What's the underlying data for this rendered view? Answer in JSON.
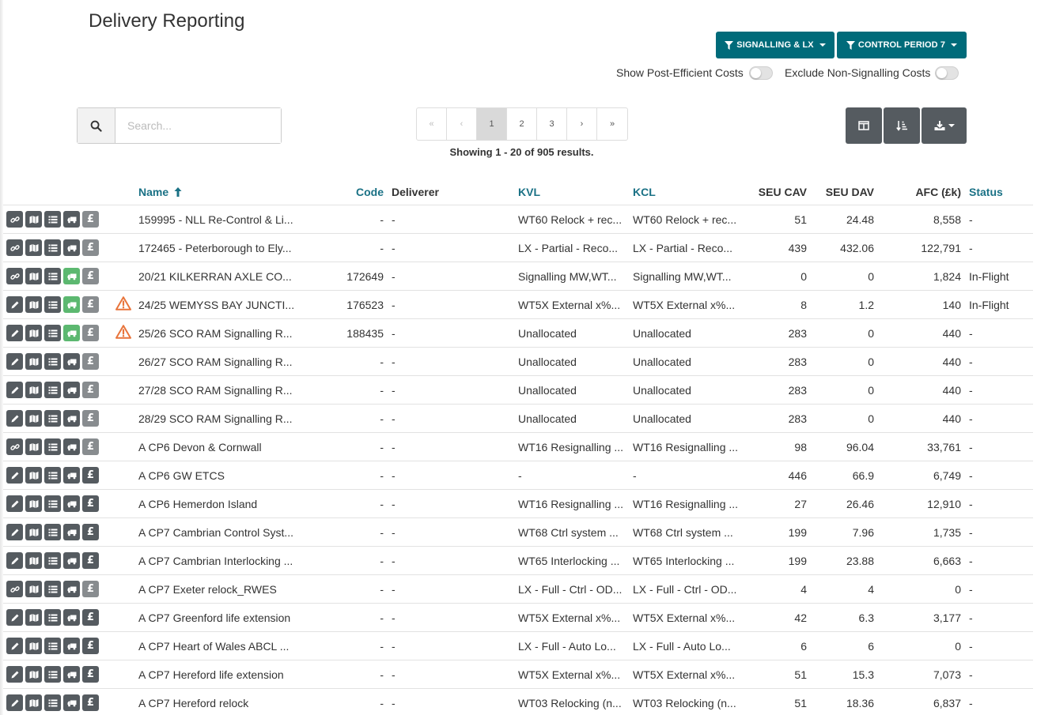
{
  "header": {
    "title": "Delivery Reporting"
  },
  "filters": [
    {
      "label": "SIGNALLING & LX"
    },
    {
      "label": "CONTROL PERIOD 7"
    }
  ],
  "toggles": {
    "post_efficient": {
      "label": "Show Post-Efficient Costs",
      "on": false
    },
    "exclude_non_signalling": {
      "label": "Exclude Non-Signalling Costs",
      "on": false
    }
  },
  "search": {
    "placeholder": "Search...",
    "value": ""
  },
  "pagination": {
    "first": "«",
    "prev": "‹",
    "pages": [
      "1",
      "2",
      "3"
    ],
    "current": "1",
    "next": "›",
    "last": "»",
    "summary": "Showing 1 - 20 of 905 results."
  },
  "toolbar": {
    "columns_icon": "columns-icon",
    "sort_icon": "sort-icon",
    "download_icon": "download-icon"
  },
  "table": {
    "columns": {
      "name": "Name",
      "code": "Code",
      "deliverer": "Deliverer",
      "kvl": "KVL",
      "kcl": "KCL",
      "seu_cav": "SEU CAV",
      "seu_dav": "SEU DAV",
      "afc": "AFC (£k)",
      "status": "Status"
    },
    "rows": [
      {
        "lead": "link",
        "truck": "dark",
        "pound": "grey",
        "warn": false,
        "name": "159995 - NLL Re-Control & Li...",
        "code": "-",
        "deliverer": "-",
        "kvl": "WT60 Relock + rec...",
        "kcl": "WT60 Relock + rec...",
        "seu_cav": "51",
        "seu_dav": "24.48",
        "afc": "8,558",
        "status": "-"
      },
      {
        "lead": "link",
        "truck": "dark",
        "pound": "grey",
        "warn": false,
        "name": "172465 - Peterborough to Ely...",
        "code": "-",
        "deliverer": "-",
        "kvl": "LX - Partial - Reco...",
        "kcl": "LX - Partial - Reco...",
        "seu_cav": "439",
        "seu_dav": "432.06",
        "afc": "122,791",
        "status": "-"
      },
      {
        "lead": "link",
        "truck": "green",
        "pound": "grey",
        "warn": false,
        "name": "20/21 KILKERRAN AXLE CO...",
        "code": "172649",
        "deliverer": "-",
        "kvl": "Signalling MW,WT...",
        "kcl": "Signalling MW,WT...",
        "seu_cav": "0",
        "seu_dav": "0",
        "afc": "1,824",
        "status": "In-Flight"
      },
      {
        "lead": "pencil",
        "truck": "green",
        "pound": "grey",
        "warn": true,
        "name": "24/25 WEMYSS BAY JUNCTI...",
        "code": "176523",
        "deliverer": "-",
        "kvl": "WT5X External x%...",
        "kcl": "WT5X External x%...",
        "seu_cav": "8",
        "seu_dav": "1.2",
        "afc": "140",
        "status": "In-Flight"
      },
      {
        "lead": "pencil",
        "truck": "green",
        "pound": "grey",
        "warn": true,
        "name": "25/26 SCO RAM Signalling R...",
        "code": "188435",
        "deliverer": "-",
        "kvl": "Unallocated",
        "kcl": "Unallocated",
        "seu_cav": "283",
        "seu_dav": "0",
        "afc": "440",
        "status": "-"
      },
      {
        "lead": "pencil",
        "truck": "dark",
        "pound": "grey",
        "warn": false,
        "name": "26/27 SCO RAM Signalling R...",
        "code": "-",
        "deliverer": "-",
        "kvl": "Unallocated",
        "kcl": "Unallocated",
        "seu_cav": "283",
        "seu_dav": "0",
        "afc": "440",
        "status": "-"
      },
      {
        "lead": "pencil",
        "truck": "dark",
        "pound": "grey",
        "warn": false,
        "name": "27/28 SCO RAM Signalling R...",
        "code": "-",
        "deliverer": "-",
        "kvl": "Unallocated",
        "kcl": "Unallocated",
        "seu_cav": "283",
        "seu_dav": "0",
        "afc": "440",
        "status": "-"
      },
      {
        "lead": "pencil",
        "truck": "dark",
        "pound": "grey",
        "warn": false,
        "name": "28/29 SCO RAM Signalling R...",
        "code": "-",
        "deliverer": "-",
        "kvl": "Unallocated",
        "kcl": "Unallocated",
        "seu_cav": "283",
        "seu_dav": "0",
        "afc": "440",
        "status": "-"
      },
      {
        "lead": "link",
        "truck": "dark",
        "pound": "grey",
        "warn": false,
        "name": "A CP6 Devon & Cornwall",
        "code": "-",
        "deliverer": "-",
        "kvl": "WT16 Resignalling ...",
        "kcl": "WT16 Resignalling ...",
        "seu_cav": "98",
        "seu_dav": "96.04",
        "afc": "33,761",
        "status": "-"
      },
      {
        "lead": "pencil",
        "truck": "dark",
        "pound": "dark",
        "warn": false,
        "name": "A CP6 GW ETCS",
        "code": "-",
        "deliverer": "-",
        "kvl": "-",
        "kcl": "-",
        "seu_cav": "446",
        "seu_dav": "66.9",
        "afc": "6,749",
        "status": "-"
      },
      {
        "lead": "pencil",
        "truck": "dark",
        "pound": "dark",
        "warn": false,
        "name": "A CP6 Hemerdon Island",
        "code": "-",
        "deliverer": "-",
        "kvl": "WT16 Resignalling ...",
        "kcl": "WT16 Resignalling ...",
        "seu_cav": "27",
        "seu_dav": "26.46",
        "afc": "12,910",
        "status": "-"
      },
      {
        "lead": "pencil",
        "truck": "dark",
        "pound": "dark",
        "warn": false,
        "name": "A CP7 Cambrian Control Syst...",
        "code": "-",
        "deliverer": "-",
        "kvl": "WT68 Ctrl system ...",
        "kcl": "WT68 Ctrl system ...",
        "seu_cav": "199",
        "seu_dav": "7.96",
        "afc": "1,735",
        "status": "-"
      },
      {
        "lead": "pencil",
        "truck": "dark",
        "pound": "dark",
        "warn": false,
        "name": "A CP7 Cambrian Interlocking ...",
        "code": "-",
        "deliverer": "-",
        "kvl": "WT65 Interlocking ...",
        "kcl": "WT65 Interlocking ...",
        "seu_cav": "199",
        "seu_dav": "23.88",
        "afc": "6,663",
        "status": "-"
      },
      {
        "lead": "link",
        "truck": "dark",
        "pound": "grey",
        "warn": false,
        "name": "A CP7 Exeter relock_RWES",
        "code": "-",
        "deliverer": "-",
        "kvl": "LX - Full - Ctrl - OD...",
        "kcl": "LX - Full - Ctrl - OD...",
        "seu_cav": "4",
        "seu_dav": "4",
        "afc": "0",
        "status": "-"
      },
      {
        "lead": "pencil",
        "truck": "dark",
        "pound": "dark",
        "warn": false,
        "name": "A CP7 Greenford life extension",
        "code": "-",
        "deliverer": "-",
        "kvl": "WT5X External x%...",
        "kcl": "WT5X External x%...",
        "seu_cav": "42",
        "seu_dav": "6.3",
        "afc": "3,177",
        "status": "-"
      },
      {
        "lead": "pencil",
        "truck": "dark",
        "pound": "dark",
        "warn": false,
        "name": "A CP7 Heart of Wales ABCL ...",
        "code": "-",
        "deliverer": "-",
        "kvl": "LX - Full - Auto Lo...",
        "kcl": "LX - Full - Auto Lo...",
        "seu_cav": "6",
        "seu_dav": "6",
        "afc": "0",
        "status": "-"
      },
      {
        "lead": "pencil",
        "truck": "dark",
        "pound": "dark",
        "warn": false,
        "name": "A CP7 Hereford life extension",
        "code": "-",
        "deliverer": "-",
        "kvl": "WT5X External x%...",
        "kcl": "WT5X External x%...",
        "seu_cav": "51",
        "seu_dav": "15.3",
        "afc": "7,073",
        "status": "-"
      },
      {
        "lead": "pencil",
        "truck": "dark",
        "pound": "dark",
        "warn": false,
        "name": "A CP7 Hereford relock",
        "code": "-",
        "deliverer": "-",
        "kvl": "WT03 Relocking (n...",
        "kcl": "WT03 Relocking (n...",
        "seu_cav": "51",
        "seu_dav": "18.36",
        "afc": "6,837",
        "status": "-"
      }
    ]
  }
}
